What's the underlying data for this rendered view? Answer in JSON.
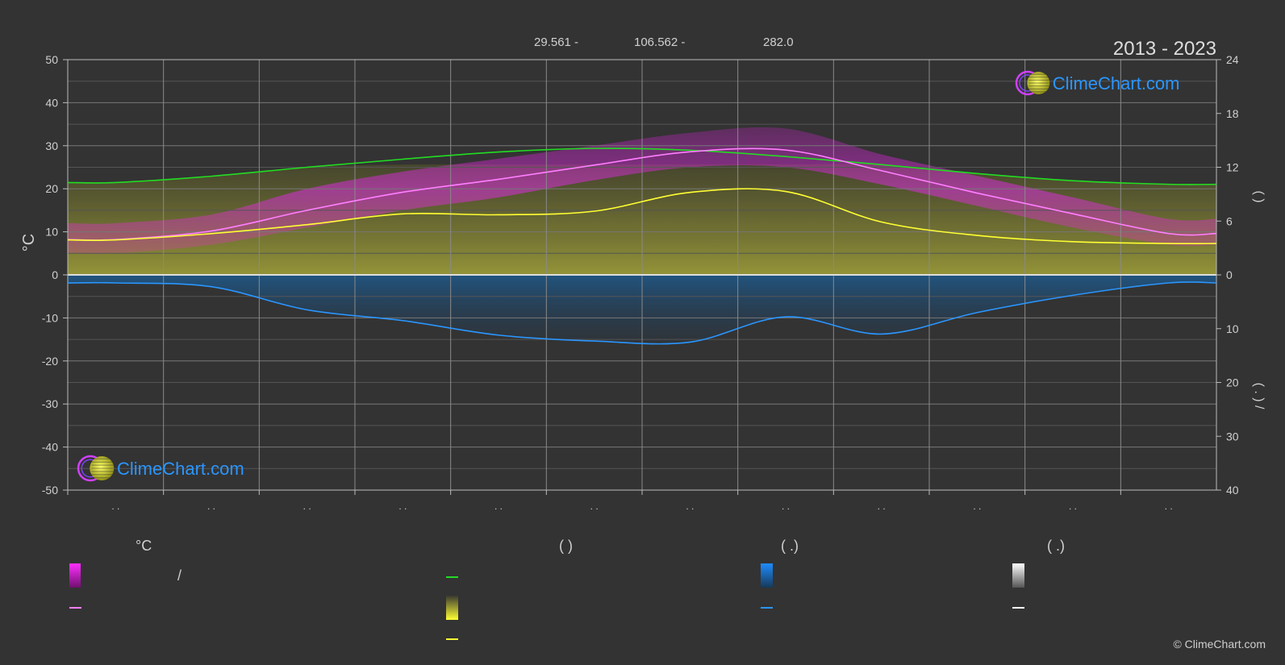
{
  "header": {
    "coords_lat": "29.561 -",
    "coords_lon": "106.562 -",
    "elevation": "282.0",
    "year_range": "2013 - 2023"
  },
  "brand": {
    "name": "ClimeChart.com",
    "copyright": "© ClimeChart.com"
  },
  "colors": {
    "background": "#333333",
    "temp_range": "#e020e0",
    "temp_mean": "#ff7fff",
    "daylight": "#22dd22",
    "sunshine_fill": "#c8c832",
    "sunshine": "#ffff33",
    "precip": "#1e78c8",
    "precip_line": "#2a96ff",
    "snow": "#ffffff",
    "brand_blue": "#2a96ff"
  },
  "legend": {
    "temp_header": "°C",
    "sun_header": "(          )",
    "rain_header": "(   .)",
    "snow_header": "(   .)",
    "temp_slash": "/"
  },
  "chart_data": {
    "type": "line",
    "title": "",
    "xlabel": "",
    "ylabel_left": "°C",
    "ylabel_right_top": "(      )",
    "ylabel_right_bottom": "(  .  )  /",
    "x_tick_labels": [
      ". .",
      ". .",
      ". .",
      ". .",
      ". .",
      ". .",
      ". .",
      ". .",
      ". .",
      ". .",
      ". .",
      ". ."
    ],
    "months_index": [
      1,
      2,
      3,
      4,
      5,
      6,
      7,
      8,
      9,
      10,
      11,
      12
    ],
    "ylim_left": [
      -50,
      50
    ],
    "yticks_left": [
      50,
      40,
      30,
      20,
      10,
      0,
      -10,
      -20,
      -30,
      -40,
      -50
    ],
    "yticks_right_top": [
      24,
      18,
      12,
      6,
      0
    ],
    "yticks_right_bottom": [
      10,
      20,
      30,
      40
    ],
    "grid": true,
    "series": [
      {
        "key": "temp_mean",
        "values": [
          8.2,
          10.2,
          15.0,
          19.2,
          22.2,
          25.5,
          28.6,
          29.0,
          24.2,
          19.0,
          14.2,
          9.6
        ]
      },
      {
        "key": "temp_max_band",
        "values": [
          12,
          14,
          20,
          24,
          27,
          30,
          33,
          34,
          28,
          23,
          18,
          13
        ]
      },
      {
        "key": "temp_min_band",
        "values": [
          5,
          7,
          11,
          15,
          18,
          22,
          25,
          25,
          21,
          16,
          11,
          7
        ]
      },
      {
        "key": "daylight_hours",
        "values": [
          10.3,
          11.0,
          12.0,
          12.9,
          13.7,
          14.1,
          13.9,
          13.2,
          12.3,
          11.3,
          10.5,
          10.1
        ]
      },
      {
        "key": "sunshine_hours",
        "values": [
          3.9,
          4.6,
          5.6,
          6.8,
          6.7,
          7.1,
          9.2,
          9.3,
          5.9,
          4.4,
          3.7,
          3.5
        ]
      },
      {
        "key": "precip_daily_mm",
        "values": [
          1.5,
          2.2,
          6.5,
          8.5,
          11.2,
          12.3,
          12.5,
          7.8,
          11.0,
          7.0,
          3.8,
          1.5
        ]
      }
    ]
  }
}
